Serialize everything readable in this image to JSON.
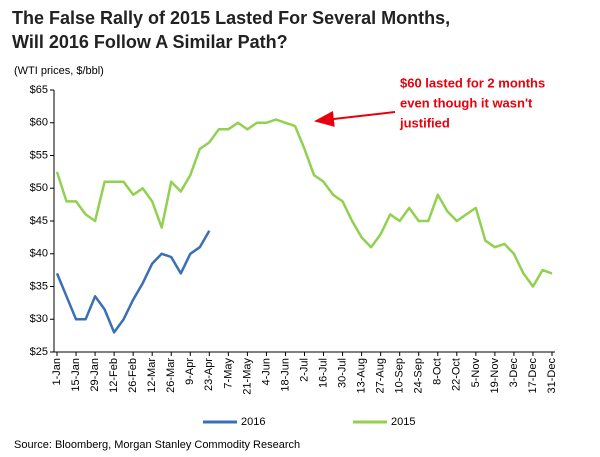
{
  "chart_data": {
    "type": "line",
    "title": [
      "The False Rally of 2015 Lasted For Several Months,",
      "Will 2016 Follow A Similar Path?"
    ],
    "subtitle": "(WTI prices, $/bbl)",
    "annotation": [
      "$60 lasted for 2 months",
      "even though it wasn't",
      "justified"
    ],
    "source": "Source: Bloomberg, Morgan Stanley Commodity Research",
    "categories": [
      "1-Jan",
      null,
      "15-Jan",
      null,
      "29-Jan",
      null,
      "12-Feb",
      null,
      "26-Feb",
      null,
      "12-Mar",
      null,
      "26-Mar",
      null,
      "9-Apr",
      null,
      "23-Apr",
      null,
      "7-May",
      null,
      "21-May",
      null,
      "4-Jun",
      null,
      "18-Jun",
      null,
      "2-Jul",
      null,
      "16-Jul",
      null,
      "30-Jul",
      null,
      "13-Aug",
      null,
      "27-Aug",
      null,
      "10-Sep",
      null,
      "24-Sep",
      null,
      "8-Oct",
      null,
      "22-Oct",
      null,
      "5-Nov",
      null,
      "19-Nov",
      null,
      "3-Dec",
      null,
      "17-Dec",
      null,
      "31-Dec"
    ],
    "series": [
      {
        "name": "2016",
        "color": "#3a6fb5",
        "values": [
          37,
          33.5,
          30,
          30,
          33.5,
          31.5,
          28,
          30,
          33,
          35.5,
          38.5,
          40,
          39.5,
          37,
          40,
          41,
          43.5,
          null,
          null,
          null,
          null,
          null,
          null,
          null,
          null,
          null,
          null,
          null,
          null,
          null,
          null,
          null,
          null,
          null,
          null,
          null,
          null,
          null,
          null,
          null,
          null,
          null,
          null,
          null,
          null,
          null,
          null,
          null,
          null,
          null,
          null,
          null,
          null
        ]
      },
      {
        "name": "2015",
        "color": "#92d050",
        "values": [
          52.5,
          48,
          48,
          46,
          45,
          51,
          51,
          51,
          49,
          50,
          48,
          44,
          51,
          49.5,
          52,
          56,
          57,
          59,
          59,
          60,
          59,
          60,
          60,
          60.5,
          60,
          59.5,
          56,
          52,
          51,
          49,
          48,
          45,
          42.5,
          41,
          43,
          46,
          45,
          47,
          45,
          45,
          49,
          46.5,
          45,
          46,
          47,
          42,
          41,
          41.5,
          40,
          37,
          35,
          37.5,
          37
        ]
      }
    ],
    "ylim": [
      25,
      65
    ],
    "yticks": [
      {
        "value": 25,
        "label": "$25"
      },
      {
        "value": 30,
        "label": "$30"
      },
      {
        "value": 35,
        "label": "$35"
      },
      {
        "value": 40,
        "label": "$40"
      },
      {
        "value": 45,
        "label": "$45"
      },
      {
        "value": 50,
        "label": "$50"
      },
      {
        "value": 55,
        "label": "$55"
      },
      {
        "value": 60,
        "label": "$60"
      },
      {
        "value": 65,
        "label": "$65"
      }
    ],
    "grid": false,
    "legend": "bottom"
  }
}
